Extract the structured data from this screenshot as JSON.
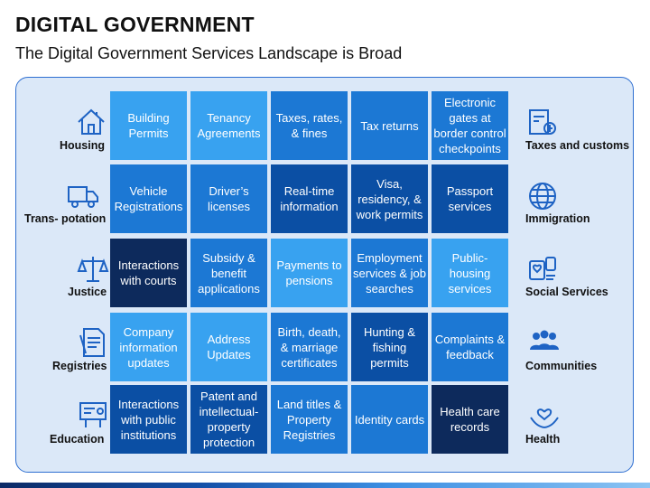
{
  "header": {
    "title": "DIGITAL GOVERNMENT",
    "subtitle": "The Digital Government Services Landscape is Broad"
  },
  "categories_left": [
    {
      "label": "Housing",
      "icon": "house-icon"
    },
    {
      "label": "Trans- potation",
      "icon": "truck-icon"
    },
    {
      "label": "Justice",
      "icon": "scales-icon"
    },
    {
      "label": "Registries",
      "icon": "document-icon"
    },
    {
      "label": "Education",
      "icon": "presentation-board-icon"
    }
  ],
  "categories_right": [
    {
      "label": "Taxes and customs",
      "icon": "tax-document-icon"
    },
    {
      "label": "Immigration",
      "icon": "globe-icon"
    },
    {
      "label": "Social Services",
      "icon": "social-services-icon"
    },
    {
      "label": "Communities",
      "icon": "people-group-icon"
    },
    {
      "label": "Health",
      "icon": "heart-hands-icon"
    }
  ],
  "colors": {
    "dark_navy": "#0d2a5c",
    "dark_blue": "#0b4fa4",
    "medium_blue": "#1c78d4",
    "light_blue": "#38a2f0",
    "icon_blue": "#1e63c4"
  },
  "grid": [
    [
      {
        "text": "Building Permits",
        "shade": "light_blue"
      },
      {
        "text": "Tenancy Agreements",
        "shade": "light_blue"
      },
      {
        "text": "Taxes, rates, & fines",
        "shade": "medium_blue"
      },
      {
        "text": "Tax returns",
        "shade": "medium_blue"
      },
      {
        "text": "Electronic gates at border control checkpoints",
        "shade": "medium_blue"
      }
    ],
    [
      {
        "text": "Vehicle Registrations",
        "shade": "medium_blue"
      },
      {
        "text": "Driver’s licenses",
        "shade": "medium_blue"
      },
      {
        "text": "Real-time information",
        "shade": "dark_blue"
      },
      {
        "text": "Visa, residency, & work permits",
        "shade": "dark_blue"
      },
      {
        "text": "Passport services",
        "shade": "dark_blue"
      }
    ],
    [
      {
        "text": "Interactions with courts",
        "shade": "dark_navy"
      },
      {
        "text": "Subsidy & benefit applications",
        "shade": "medium_blue"
      },
      {
        "text": "Payments to pensions",
        "shade": "light_blue"
      },
      {
        "text": "Employment services & job searches",
        "shade": "medium_blue"
      },
      {
        "text": "Public-housing services",
        "shade": "light_blue"
      }
    ],
    [
      {
        "text": "Company information updates",
        "shade": "light_blue"
      },
      {
        "text": "Address Updates",
        "shade": "light_blue"
      },
      {
        "text": "Birth, death, & marriage certificates",
        "shade": "medium_blue"
      },
      {
        "text": "Hunting & fishing permits",
        "shade": "dark_blue"
      },
      {
        "text": "Complaints & feedback",
        "shade": "medium_blue"
      }
    ],
    [
      {
        "text": "Interactions with public institutions",
        "shade": "dark_blue"
      },
      {
        "text": "Patent and intellectual-property protection",
        "shade": "dark_blue"
      },
      {
        "text": "Land titles & Property Registries",
        "shade": "medium_blue"
      },
      {
        "text": "Identity cards",
        "shade": "medium_blue"
      },
      {
        "text": "Health care records",
        "shade": "dark_navy"
      }
    ]
  ]
}
